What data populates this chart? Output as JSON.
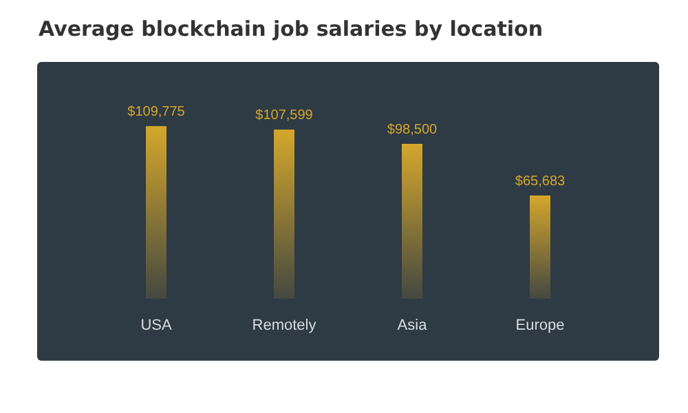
{
  "chart_data": {
    "type": "bar",
    "title": "Average blockchain job salaries by location",
    "categories": [
      "USA",
      "Remotely",
      "Asia",
      "Europe"
    ],
    "values": [
      109775,
      107599,
      98500,
      65683
    ],
    "value_labels": [
      "$109,775",
      "$107,599",
      "$98,500",
      "$65,683"
    ],
    "color": "#d4a72c",
    "grid": false
  }
}
